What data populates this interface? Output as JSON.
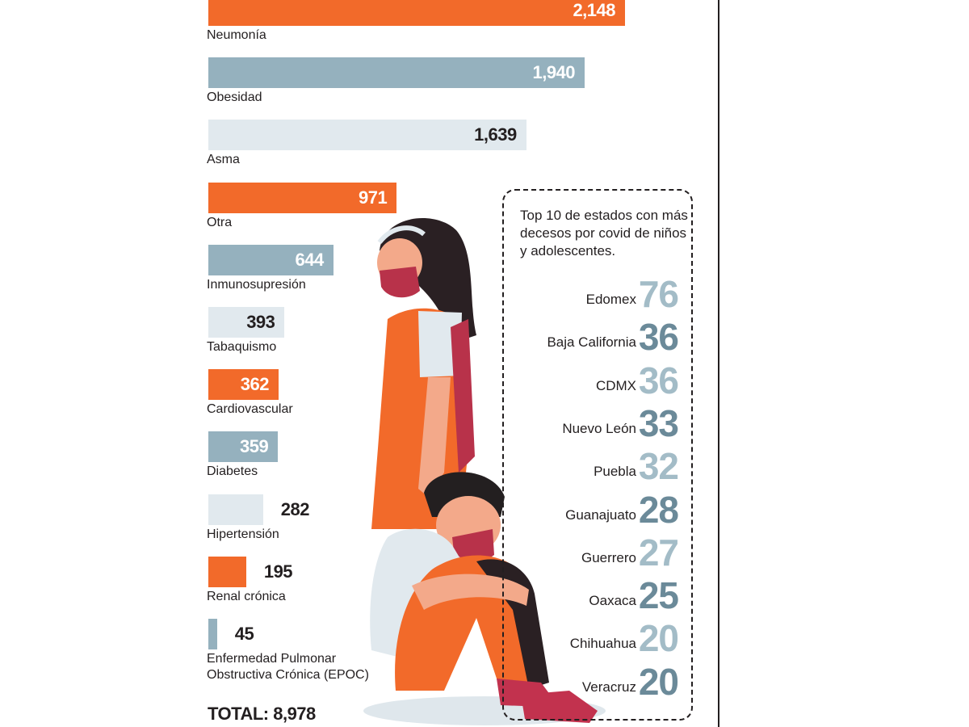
{
  "chart_data": [
    {
      "type": "bar",
      "orientation": "horizontal",
      "categories": [
        "Neumonía",
        "Obesidad",
        "Asma",
        "Otra",
        "Inmunosupresión",
        "Tabaquismo",
        "Cardiovascular",
        "Diabetes",
        "Hipertensión",
        "Renal crónica",
        "Enfermedad Pulmonar Obstructiva Crónica (EPOC)"
      ],
      "values": [
        2148,
        1940,
        1639,
        971,
        644,
        393,
        362,
        359,
        282,
        195,
        45
      ],
      "value_labels": [
        "2,148",
        "1,940",
        "1,639",
        "971",
        "644",
        "393",
        "362",
        "359",
        "282",
        "195",
        "45"
      ],
      "colors": [
        "#f26a2a",
        "#95b1be",
        "#e1e9ee",
        "#f26a2a",
        "#95b1be",
        "#e1e9ee",
        "#f26a2a",
        "#95b1be",
        "#e1e9ee",
        "#f26a2a",
        "#95b1be"
      ],
      "total_label": "TOTAL: 8,978"
    },
    {
      "type": "table",
      "title": "Top 10 de estados con más decesos por covid de niños y adolescentes.",
      "states": [
        "Edomex",
        "Baja California",
        "CDMX",
        "Nuevo León",
        "Puebla",
        "Guanajuato",
        "Guerrero",
        "Oaxaca",
        "Chihuahua",
        "Veracruz"
      ],
      "values": [
        "76",
        "36",
        "36",
        "33",
        "32",
        "28",
        "27",
        "25",
        "20",
        "20"
      ],
      "value_colors": [
        "#a3bcc7",
        "#6b8a99",
        "#a3bcc7",
        "#6b8a99",
        "#a3bcc7",
        "#6b8a99",
        "#a3bcc7",
        "#6b8a99",
        "#a3bcc7",
        "#6b8a99"
      ]
    }
  ],
  "colors": {
    "orange": "#f26a2a",
    "steel": "#95b1be",
    "pale": "#e1e9ee",
    "text": "#231f20"
  },
  "illustration": "girl-and-boy-with-masks"
}
